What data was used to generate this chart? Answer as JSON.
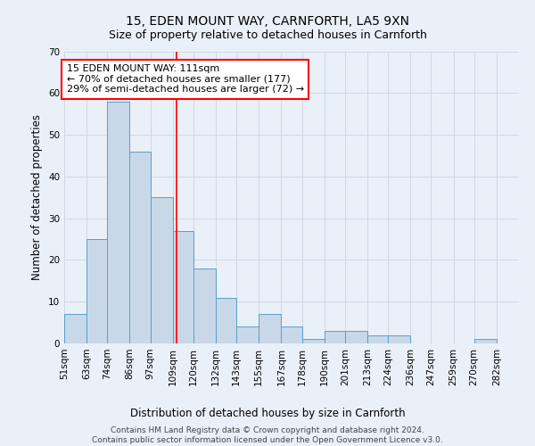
{
  "title": "15, EDEN MOUNT WAY, CARNFORTH, LA5 9XN",
  "subtitle": "Size of property relative to detached houses in Carnforth",
  "xlabel": "Distribution of detached houses by size in Carnforth",
  "ylabel": "Number of detached properties",
  "bar_labels": [
    "51sqm",
    "63sqm",
    "74sqm",
    "86sqm",
    "97sqm",
    "109sqm",
    "120sqm",
    "132sqm",
    "143sqm",
    "155sqm",
    "167sqm",
    "178sqm",
    "190sqm",
    "201sqm",
    "213sqm",
    "224sqm",
    "236sqm",
    "247sqm",
    "259sqm",
    "270sqm",
    "282sqm"
  ],
  "bar_values": [
    7,
    25,
    58,
    46,
    35,
    27,
    18,
    11,
    4,
    7,
    4,
    1,
    3,
    3,
    2,
    2,
    0,
    0,
    0,
    1,
    0
  ],
  "bar_color": "#c8d8e8",
  "bar_edge_color": "#5a9fc8",
  "bin_edges": [
    51,
    63,
    74,
    86,
    97,
    109,
    120,
    132,
    143,
    155,
    167,
    178,
    190,
    201,
    213,
    224,
    236,
    247,
    259,
    270,
    282,
    294
  ],
  "property_size": 111,
  "annotation_text_line1": "15 EDEN MOUNT WAY: 111sqm",
  "annotation_text_line2": "← 70% of detached houses are smaller (177)",
  "annotation_text_line3": "29% of semi-detached houses are larger (72) →",
  "annotation_box_color": "white",
  "annotation_box_edge": "red",
  "vline_color": "red",
  "ylim": [
    0,
    70
  ],
  "yticks": [
    0,
    10,
    20,
    30,
    40,
    50,
    60,
    70
  ],
  "grid_color": "#d0d8e4",
  "background_color": "#eaf0f8",
  "footer_line1": "Contains HM Land Registry data © Crown copyright and database right 2024.",
  "footer_line2": "Contains public sector information licensed under the Open Government Licence v3.0.",
  "title_fontsize": 10,
  "subtitle_fontsize": 9,
  "axis_label_fontsize": 8.5,
  "tick_fontsize": 7.5,
  "annotation_fontsize": 8,
  "footer_fontsize": 6.5
}
